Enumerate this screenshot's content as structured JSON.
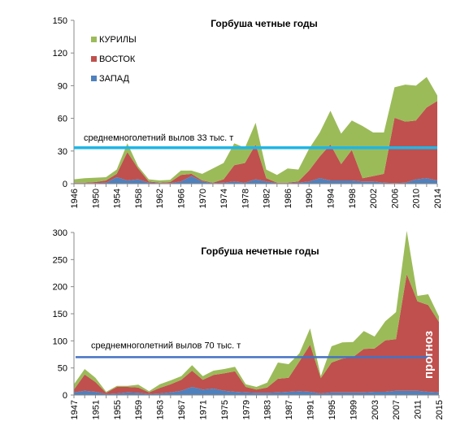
{
  "colors": {
    "kurily": "#9bbb59",
    "vostok": "#c0504d",
    "zapad": "#4f81bd",
    "avg_top": "#1fb6e6",
    "avg_bottom": "#4472c4",
    "axis": "#888888"
  },
  "chart_data": [
    {
      "type": "area",
      "stacked": true,
      "title": "Горбуша четные годы",
      "x": [
        1946,
        1948,
        1950,
        1952,
        1954,
        1956,
        1958,
        1960,
        1962,
        1964,
        1966,
        1968,
        1970,
        1972,
        1974,
        1976,
        1978,
        1980,
        1982,
        1984,
        1986,
        1988,
        1990,
        1992,
        1994,
        1996,
        1998,
        2000,
        2002,
        2004,
        2006,
        2008,
        2010,
        2012,
        2014
      ],
      "xticks": [
        1946,
        1950,
        1954,
        1958,
        1962,
        1966,
        1970,
        1974,
        1978,
        1982,
        1986,
        1990,
        1994,
        1998,
        2002,
        2006,
        2010,
        2014
      ],
      "ylim": [
        0,
        150
      ],
      "yticks": [
        0,
        30,
        60,
        90,
        120,
        150
      ],
      "legend": [
        "КУРИЛЫ",
        "ВОСТОК",
        "ЗАПАД"
      ],
      "series": [
        {
          "name": "ЗАПАД",
          "values": [
            0.5,
            0.5,
            0.5,
            1,
            6,
            3,
            4,
            1,
            0.5,
            0.5,
            2,
            7,
            2,
            0.5,
            1,
            2,
            1,
            4,
            2,
            0.5,
            0.5,
            1,
            2,
            5,
            3,
            3,
            3,
            2,
            2,
            1,
            0.5,
            1,
            4,
            5,
            3
          ]
        },
        {
          "name": "ВОСТОК",
          "values": [
            0.5,
            0.5,
            1,
            2,
            3,
            26,
            10,
            1,
            0.5,
            1,
            6,
            2,
            1,
            0.5,
            3,
            15,
            18,
            32,
            3,
            0.5,
            0.5,
            1,
            10,
            20,
            33,
            15,
            28,
            3,
            5,
            8,
            60,
            56,
            54,
            65,
            73
          ]
        },
        {
          "name": "КУРИЛЫ",
          "values": [
            3,
            4,
            4,
            3,
            4,
            8,
            2,
            2,
            2,
            2,
            4,
            3,
            6,
            13,
            15,
            20,
            14,
            20,
            8,
            7,
            13,
            11,
            20,
            22,
            31,
            28,
            27,
            48,
            40,
            38,
            28,
            34,
            32,
            28,
            5
          ]
        }
      ],
      "avg_line": {
        "value": 33,
        "label": "среднемноголетний вылов 33 тыс. т"
      }
    },
    {
      "type": "area",
      "stacked": true,
      "title": "Горбуша нечетные годы",
      "x": [
        1947,
        1949,
        1951,
        1953,
        1955,
        1957,
        1959,
        1961,
        1963,
        1965,
        1967,
        1969,
        1971,
        1973,
        1975,
        1977,
        1979,
        1981,
        1983,
        1985,
        1987,
        1989,
        1991,
        1993,
        1995,
        1997,
        1999,
        2001,
        2003,
        2005,
        2007,
        2009,
        2011,
        2013,
        2015
      ],
      "xticks": [
        1947,
        1951,
        1955,
        1959,
        1963,
        1967,
        1971,
        1975,
        1979,
        1983,
        1987,
        1991,
        1995,
        1999,
        2003,
        2007,
        2011,
        2015
      ],
      "ylim": [
        0,
        300
      ],
      "yticks": [
        0,
        50,
        100,
        150,
        200,
        250,
        300
      ],
      "series": [
        {
          "name": "ЗАПАД",
          "values": [
            5,
            8,
            6,
            2,
            3,
            5,
            4,
            2,
            3,
            5,
            8,
            15,
            10,
            12,
            8,
            6,
            5,
            4,
            4,
            5,
            6,
            7,
            6,
            3,
            5,
            5,
            5,
            5,
            6,
            6,
            8,
            8,
            8,
            6,
            5
          ]
        },
        {
          "name": "ВОСТОК",
          "values": [
            5,
            30,
            18,
            2,
            12,
            10,
            10,
            3,
            10,
            15,
            20,
            30,
            18,
            25,
            32,
            38,
            10,
            6,
            10,
            25,
            26,
            55,
            87,
            28,
            55,
            62,
            65,
            80,
            80,
            95,
            95,
            215,
            165,
            160,
            130
          ]
        },
        {
          "name": "КУРИЛЫ",
          "values": [
            10,
            10,
            8,
            2,
            2,
            2,
            5,
            2,
            7,
            7,
            7,
            10,
            7,
            8,
            8,
            8,
            5,
            5,
            9,
            30,
            25,
            15,
            30,
            4,
            30,
            30,
            28,
            33,
            22,
            35,
            50,
            80,
            10,
            20,
            10
          ]
        }
      ],
      "avg_line": {
        "value": 70,
        "label": "среднемноголетний вылов 70 тыс. т"
      },
      "annotation": {
        "text": "прогноз",
        "year": 2015
      }
    }
  ]
}
